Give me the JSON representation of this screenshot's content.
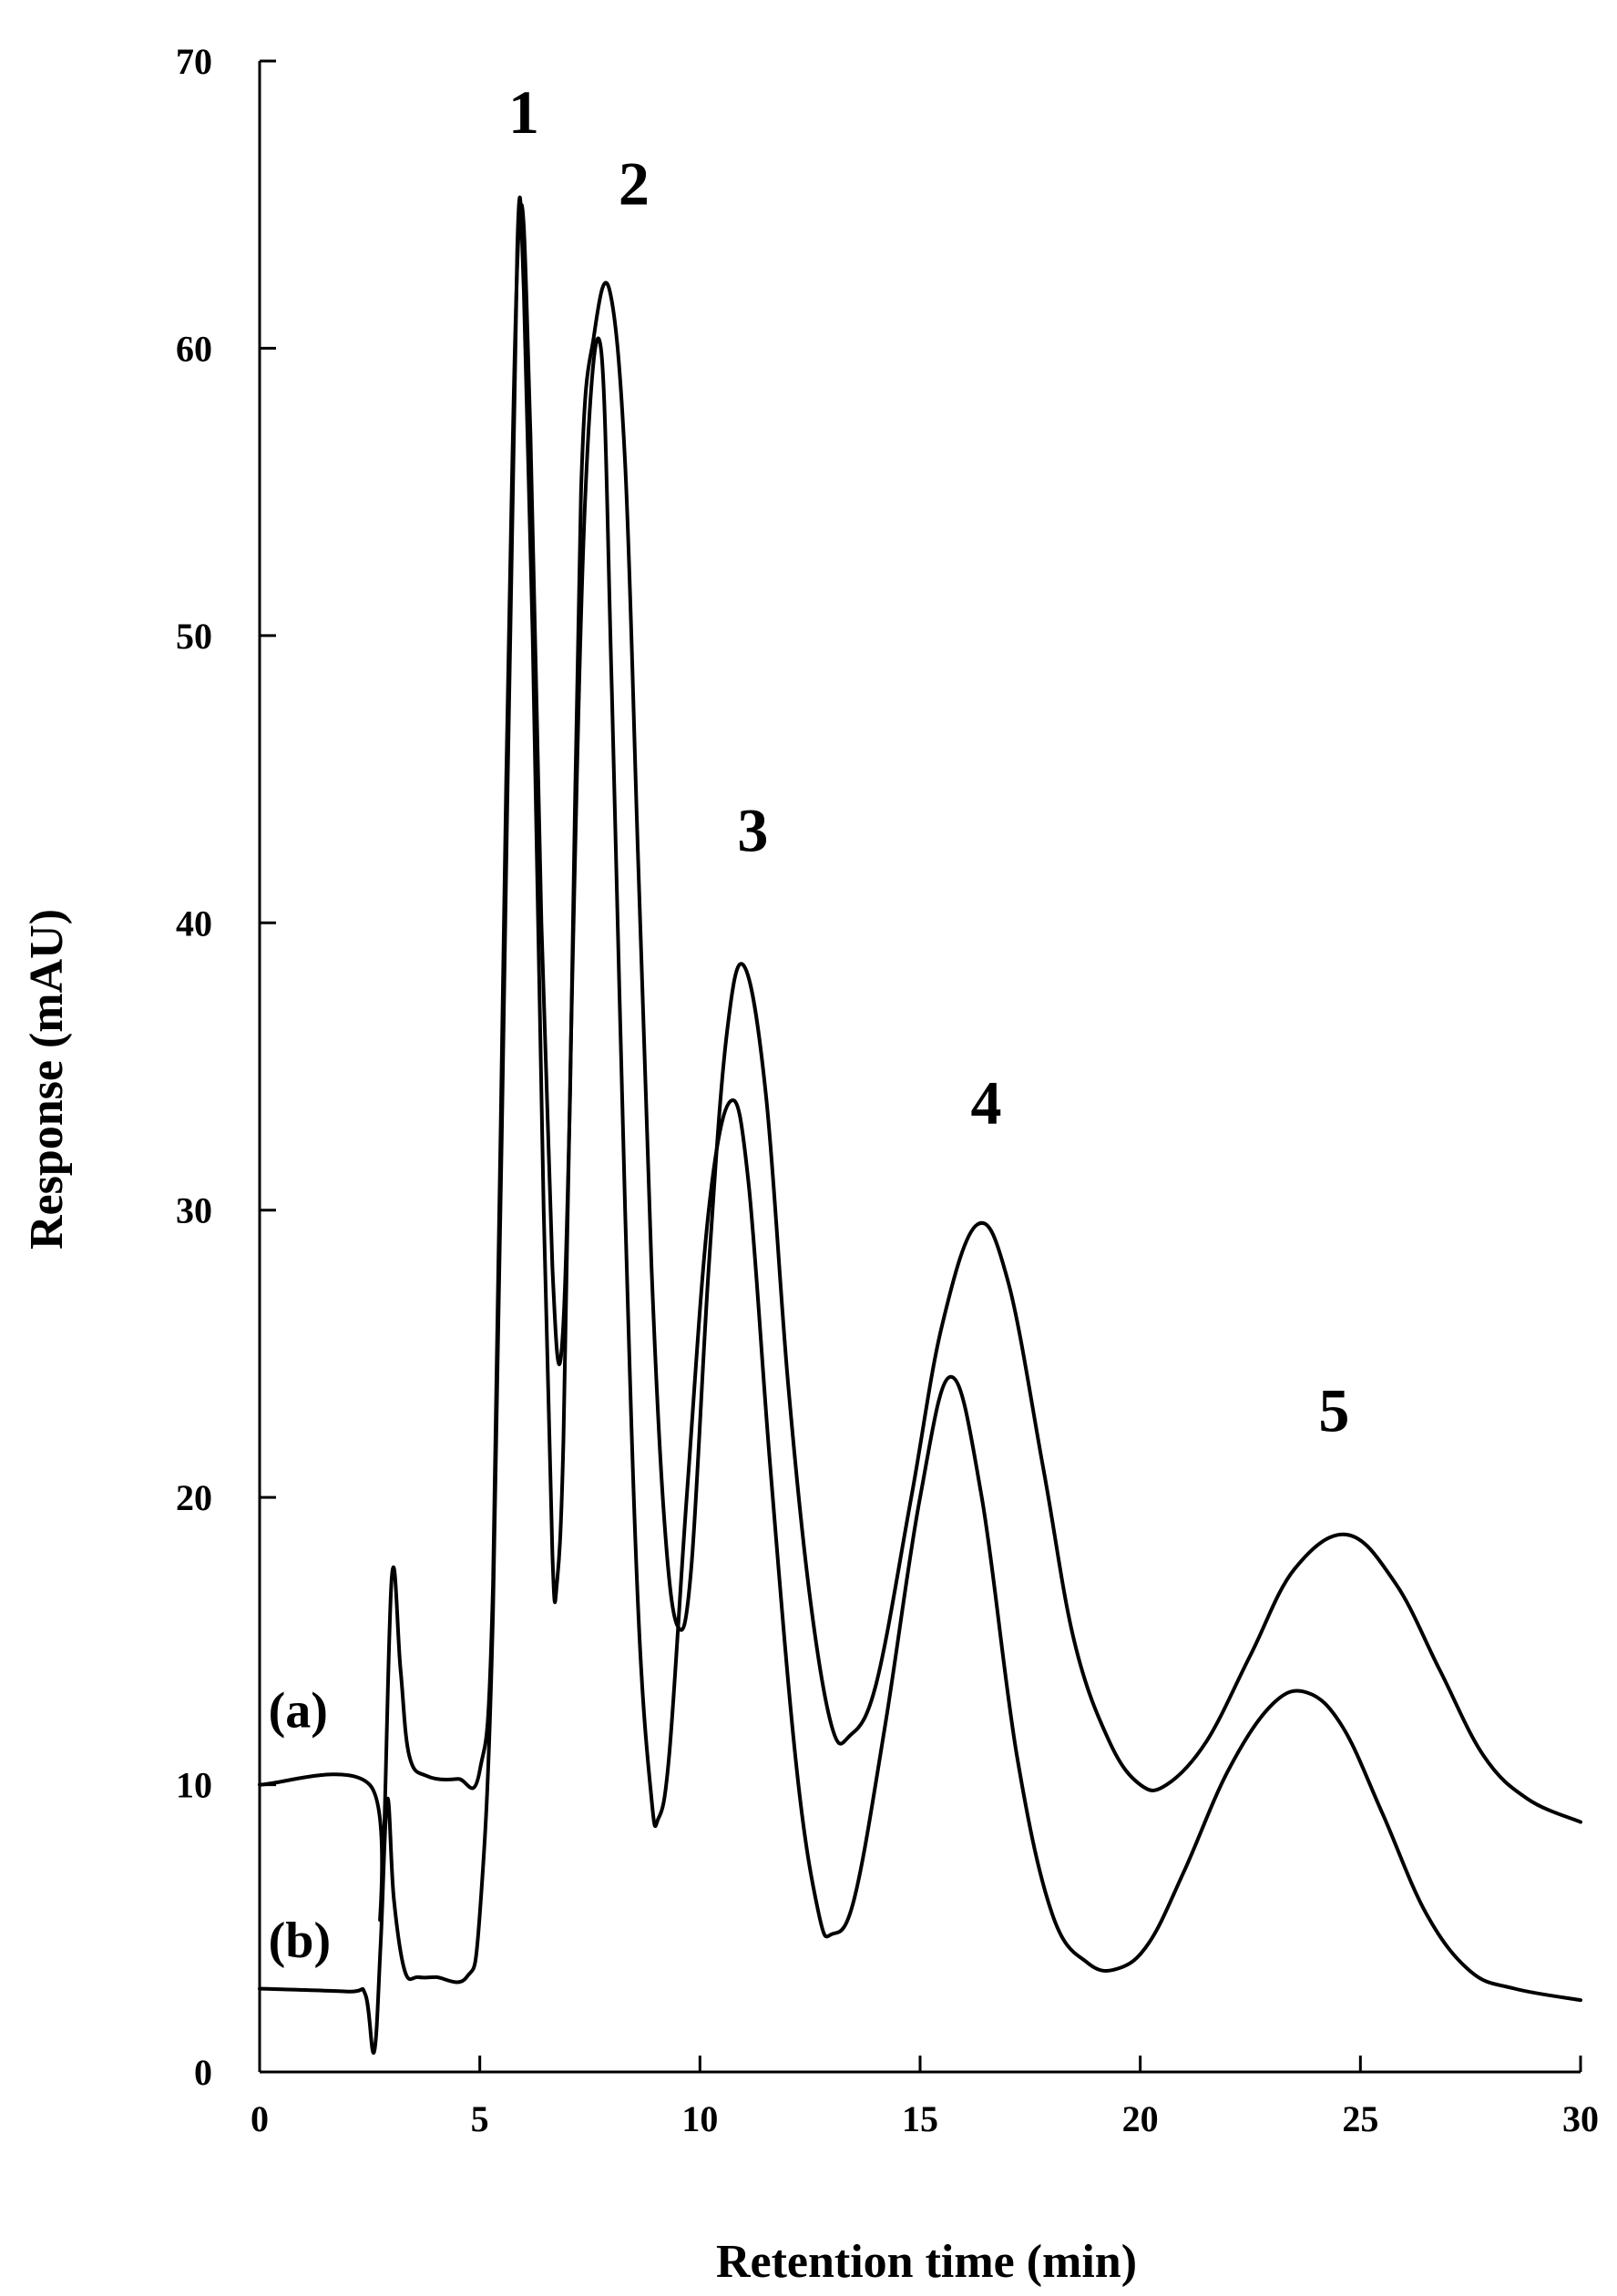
{
  "chart_data": {
    "type": "line",
    "title": "",
    "xlabel": "Retention time (min)",
    "ylabel": "Response (mAU)",
    "xlim": [
      0,
      30
    ],
    "ylim": [
      0,
      70
    ],
    "x_ticks": [
      "0",
      "5",
      "10",
      "15",
      "20",
      "25",
      "30"
    ],
    "y_ticks": [
      "0",
      "10",
      "20",
      "30",
      "40",
      "50",
      "60",
      "70"
    ],
    "grid": false,
    "legend": "none",
    "line_color": "#000000",
    "peak_labels": [
      {
        "text": "1",
        "x": 6.0,
        "y": 67.5
      },
      {
        "text": "2",
        "x": 8.5,
        "y": 65.0
      },
      {
        "text": "3",
        "x": 11.2,
        "y": 42.5
      },
      {
        "text": "4",
        "x": 16.5,
        "y": 33.0
      },
      {
        "text": "5",
        "x": 24.4,
        "y": 22.3
      }
    ],
    "series": [
      {
        "name": "(a)",
        "label_x": 0.2,
        "label_y": 12.0,
        "x": [
          0,
          2.5,
          2.75,
          3.0,
          3.2,
          3.4,
          3.8,
          4.5,
          5.0,
          5.3,
          5.6,
          5.9,
          6.15,
          6.4,
          6.65,
          6.85,
          7.05,
          7.3,
          7.6,
          7.95,
          8.3,
          8.6,
          8.9,
          9.2,
          9.5,
          9.8,
          10.2,
          10.6,
          11.0,
          11.5,
          12.0,
          12.5,
          13.0,
          13.4,
          14.0,
          14.8,
          15.5,
          16.3,
          17.0,
          17.8,
          18.5,
          19.3,
          20.0,
          20.6,
          21.5,
          22.5,
          23.5,
          24.7,
          25.8,
          26.8,
          27.8,
          28.8,
          30.0
        ],
        "y": [
          10.0,
          10.0,
          5.5,
          17.2,
          14.0,
          11.0,
          10.3,
          10.2,
          10.5,
          17.0,
          45.0,
          64.5,
          57.0,
          40.0,
          28.0,
          25.0,
          34.0,
          55.0,
          60.5,
          62.0,
          56.0,
          42.0,
          28.0,
          19.0,
          15.5,
          17.5,
          28.0,
          36.0,
          38.5,
          34.0,
          24.0,
          16.5,
          12.0,
          11.7,
          13.5,
          20.0,
          26.0,
          29.5,
          27.5,
          21.0,
          15.0,
          11.5,
          10.0,
          10.0,
          11.5,
          14.5,
          17.5,
          18.7,
          17.0,
          14.0,
          11.0,
          9.5,
          8.7
        ]
      },
      {
        "name": "(b)",
        "label_x": 0.2,
        "label_y": 4.0,
        "x": [
          0,
          2.0,
          2.4,
          2.6,
          2.75,
          2.9,
          3.05,
          3.3,
          3.6,
          4.0,
          4.7,
          5.0,
          5.3,
          5.6,
          5.85,
          6.0,
          6.2,
          6.45,
          6.65,
          6.75,
          6.9,
          7.1,
          7.4,
          7.75,
          8.0,
          8.3,
          8.6,
          8.9,
          9.05,
          9.3,
          9.7,
          10.2,
          10.7,
          11.1,
          11.6,
          12.2,
          12.7,
          13.0,
          13.5,
          14.2,
          15.0,
          15.7,
          16.4,
          17.2,
          18.0,
          18.8,
          19.5,
          20.2,
          21.0,
          22.0,
          23.0,
          23.8,
          24.6,
          25.5,
          26.5,
          27.5,
          28.5,
          30.0
        ],
        "y": [
          2.9,
          2.8,
          2.7,
          0.7,
          4.5,
          9.5,
          6.0,
          3.5,
          3.3,
          3.3,
          3.3,
          5.5,
          16.0,
          42.0,
          63.5,
          62.0,
          50.0,
          30.0,
          18.0,
          17.0,
          22.0,
          38.0,
          55.0,
          60.0,
          48.0,
          30.0,
          16.0,
          9.5,
          8.8,
          11.0,
          20.0,
          30.0,
          33.8,
          31.0,
          21.0,
          10.5,
          5.5,
          4.8,
          6.0,
          12.0,
          20.0,
          24.2,
          20.0,
          11.0,
          5.5,
          3.8,
          3.6,
          4.5,
          7.0,
          10.5,
          12.8,
          13.2,
          12.0,
          9.0,
          5.5,
          3.5,
          2.9,
          2.5
        ]
      }
    ]
  }
}
